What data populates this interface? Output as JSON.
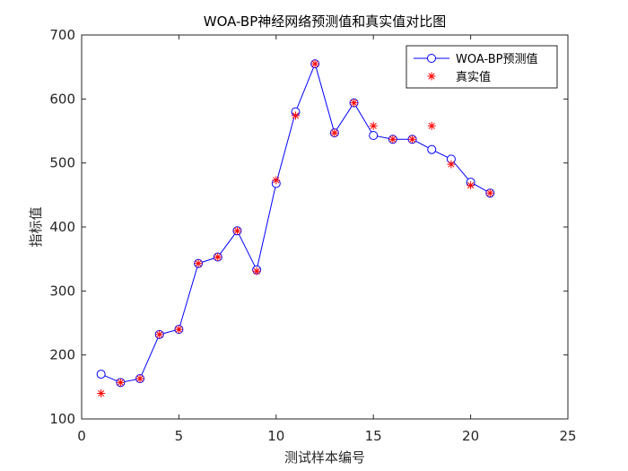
{
  "chart_data": {
    "type": "line",
    "title": "WOA-BP神经网络预测值和真实值对比图",
    "xlabel": "测试样本编号",
    "ylabel": "指标值",
    "xlim": [
      0,
      25
    ],
    "ylim": [
      100,
      700
    ],
    "xticks": [
      0,
      5,
      10,
      15,
      20,
      25
    ],
    "yticks": [
      100,
      200,
      300,
      400,
      500,
      600,
      700
    ],
    "grid": false,
    "legend_position": "top-right",
    "x": [
      1,
      2,
      3,
      4,
      5,
      6,
      7,
      8,
      9,
      10,
      11,
      12,
      13,
      14,
      15,
      16,
      17,
      18,
      19,
      20,
      21
    ],
    "series": [
      {
        "name": "WOA-BP预测值",
        "style": "line-circle",
        "color": "#0000ff",
        "values": [
          170,
          157,
          163,
          232,
          240,
          343,
          353,
          394,
          333,
          468,
          580,
          655,
          547,
          594,
          543,
          537,
          537,
          521,
          506,
          470,
          453
        ]
      },
      {
        "name": "真实值",
        "style": "star",
        "color": "#ff0000",
        "values": [
          140,
          157,
          163,
          232,
          240,
          343,
          353,
          394,
          331,
          473,
          574,
          655,
          547,
          594,
          558,
          537,
          537,
          558,
          498,
          465,
          453
        ]
      }
    ]
  }
}
